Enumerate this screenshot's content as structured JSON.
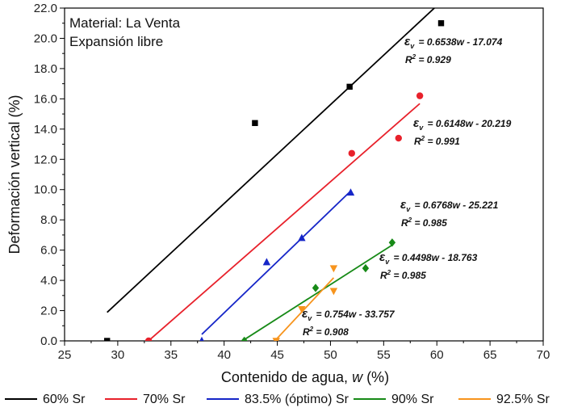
{
  "chart_data": {
    "type": "scatter",
    "xlabel_prefix": "Contenido de agua, ",
    "xlabel_var": "w",
    "xlabel_suffix": " (%)",
    "ylabel": "Deformación vertical (%)",
    "xlim": [
      25,
      70
    ],
    "ylim": [
      0,
      22
    ],
    "xticks": [
      25,
      30,
      35,
      40,
      45,
      50,
      55,
      60,
      65,
      70
    ],
    "yticks": [
      "0.0",
      "2.0",
      "4.0",
      "6.0",
      "8.0",
      "10.0",
      "12.0",
      "14.0",
      "16.0",
      "18.0",
      "20.0",
      "22.0"
    ],
    "grid": false,
    "legend_position": "bottom",
    "annotations": [
      "Material: La Venta",
      "Expansión libre"
    ],
    "series": [
      {
        "name": "60% Sr",
        "color": "#000000",
        "marker": "square",
        "points": [
          [
            29.0,
            0.0
          ],
          [
            42.9,
            14.4
          ],
          [
            51.8,
            16.8
          ],
          [
            60.4,
            21.0
          ]
        ],
        "fit_x": [
          29.0,
          60.4
        ],
        "equation": "= 0.6538w - 17.074",
        "r2": "= 0.929"
      },
      {
        "name": "70% Sr",
        "color": "#e8212b",
        "marker": "circle",
        "points": [
          [
            32.9,
            0.0
          ],
          [
            52.0,
            12.4
          ],
          [
            56.4,
            13.4
          ],
          [
            58.4,
            16.2
          ]
        ],
        "fit_x": [
          32.9,
          58.4
        ],
        "equation": "= 0.6148w - 20.219",
        "r2": "= 0.991"
      },
      {
        "name": "83.5% (óptimo) Sr",
        "color": "#1626c8",
        "marker": "triangle-up",
        "points": [
          [
            37.9,
            0.0
          ],
          [
            44.0,
            5.2
          ],
          [
            47.3,
            6.8
          ],
          [
            51.9,
            9.8
          ]
        ],
        "fit_x": [
          37.9,
          51.9
        ],
        "equation": "= 0.6768w - 25.221",
        "r2": "= 0.985"
      },
      {
        "name": "90% Sr",
        "color": "#178a17",
        "marker": "diamond",
        "points": [
          [
            41.9,
            0.0
          ],
          [
            48.6,
            3.5
          ],
          [
            53.3,
            4.8
          ],
          [
            55.8,
            6.5
          ]
        ],
        "fit_x": [
          41.9,
          55.8
        ],
        "equation": "= 0.4498w - 18.763",
        "r2": "= 0.985"
      },
      {
        "name": "92.5% Sr",
        "color": "#f7941d",
        "marker": "triangle-down",
        "points": [
          [
            44.9,
            0.0
          ],
          [
            47.3,
            2.1
          ],
          [
            50.3,
            3.3
          ],
          [
            50.3,
            4.8
          ]
        ],
        "fit_x": [
          44.9,
          50.3
        ],
        "equation": "= 0.754w - 33.757",
        "r2": "= 0.908"
      }
    ]
  }
}
